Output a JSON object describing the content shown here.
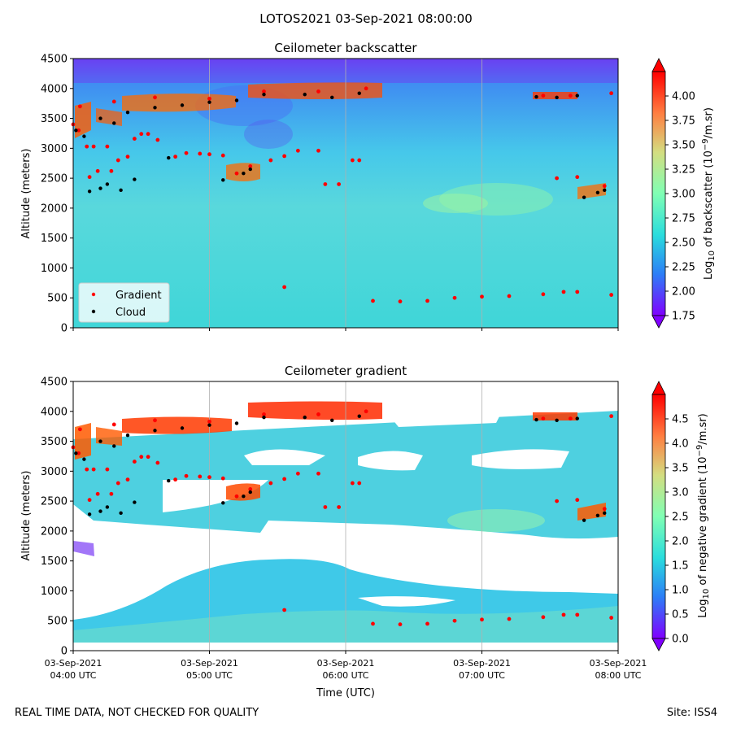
{
  "figure": {
    "suptitle": "LOTOS2021 03-Sep-2021 08:00:00",
    "footer_left": "REAL TIME DATA, NOT CHECKED FOR QUALITY",
    "footer_right": "Site: ISS4"
  },
  "chart_data": [
    {
      "type": "heatmap",
      "title": "Ceilometer backscatter",
      "ylabel": "Altitude (meters)",
      "xlabel": "",
      "ylim": [
        0,
        4500
      ],
      "yticks": [
        0,
        500,
        1000,
        1500,
        2000,
        2500,
        3000,
        3500,
        4000,
        4500
      ],
      "xlim_hours_utc": [
        4,
        8
      ],
      "xticks_hours": [
        4,
        5,
        6,
        7,
        8
      ],
      "xtick_labels": [],
      "grid_vertical": true,
      "colorbar": {
        "label": "Log10 of backscatter (10^-9/m.sr)",
        "range": [
          1.75,
          4.25
        ],
        "ticks": [
          1.75,
          2.0,
          2.25,
          2.5,
          2.75,
          3.0,
          3.25,
          3.5,
          3.75,
          4.0
        ],
        "tick_labels": [
          "1.75",
          "2.00",
          "2.25",
          "2.50",
          "2.75",
          "3.00",
          "3.25",
          "3.50",
          "3.75",
          "4.00"
        ],
        "extend": "both",
        "colormap": "rainbow"
      },
      "legend": {
        "position": "lower-left",
        "entries": [
          {
            "name": "Gradient",
            "color": "#ff0000"
          },
          {
            "name": "Cloud",
            "color": "#000000"
          }
        ]
      },
      "gradient_series": [
        [
          4.0,
          3400
        ],
        [
          4.04,
          3300
        ],
        [
          4.1,
          3030
        ],
        [
          4.15,
          3030
        ],
        [
          4.25,
          3030
        ],
        [
          4.12,
          2520
        ],
        [
          4.18,
          2620
        ],
        [
          4.28,
          2620
        ],
        [
          4.33,
          2800
        ],
        [
          4.4,
          2860
        ],
        [
          4.45,
          3160
        ],
        [
          4.5,
          3240
        ],
        [
          4.55,
          3240
        ],
        [
          4.62,
          3140
        ],
        [
          4.75,
          2860
        ],
        [
          4.83,
          2920
        ],
        [
          4.93,
          2910
        ],
        [
          5.0,
          2900
        ],
        [
          5.1,
          2880
        ],
        [
          5.2,
          2580
        ],
        [
          5.3,
          2700
        ],
        [
          5.45,
          2800
        ],
        [
          5.55,
          2870
        ],
        [
          5.65,
          2960
        ],
        [
          5.8,
          2960
        ],
        [
          5.85,
          2400
        ],
        [
          5.95,
          2400
        ],
        [
          6.05,
          2800
        ],
        [
          6.1,
          2800
        ],
        [
          5.55,
          680
        ],
        [
          6.2,
          450
        ],
        [
          6.4,
          440
        ],
        [
          6.6,
          450
        ],
        [
          6.8,
          500
        ],
        [
          7.0,
          520
        ],
        [
          7.2,
          530
        ],
        [
          7.45,
          560
        ],
        [
          7.6,
          600
        ],
        [
          7.7,
          600
        ],
        [
          7.95,
          550
        ],
        [
          7.55,
          2500
        ],
        [
          7.7,
          2520
        ],
        [
          7.9,
          2370
        ],
        [
          4.05,
          3700
        ],
        [
          4.3,
          3780
        ],
        [
          4.6,
          3850
        ],
        [
          5.0,
          3830
        ],
        [
          5.4,
          3950
        ],
        [
          5.8,
          3950
        ],
        [
          6.15,
          4000
        ],
        [
          7.45,
          3880
        ],
        [
          7.65,
          3880
        ],
        [
          7.95,
          3920
        ]
      ],
      "cloud_series": [
        [
          4.02,
          3300
        ],
        [
          4.08,
          3200
        ],
        [
          4.12,
          2280
        ],
        [
          4.2,
          2330
        ],
        [
          4.25,
          2400
        ],
        [
          4.35,
          2300
        ],
        [
          4.45,
          2480
        ],
        [
          4.7,
          2840
        ],
        [
          5.1,
          2470
        ],
        [
          5.25,
          2580
        ],
        [
          5.3,
          2650
        ],
        [
          4.2,
          3500
        ],
        [
          4.3,
          3420
        ],
        [
          4.4,
          3600
        ],
        [
          4.6,
          3680
        ],
        [
          4.8,
          3720
        ],
        [
          5.0,
          3770
        ],
        [
          5.2,
          3800
        ],
        [
          5.4,
          3900
        ],
        [
          5.7,
          3900
        ],
        [
          5.9,
          3850
        ],
        [
          6.1,
          3920
        ],
        [
          7.4,
          3860
        ],
        [
          7.55,
          3850
        ],
        [
          7.7,
          3880
        ],
        [
          7.75,
          2180
        ],
        [
          7.85,
          2260
        ],
        [
          7.9,
          2300
        ]
      ]
    },
    {
      "type": "heatmap",
      "title": "Ceilometer gradient",
      "ylabel": "Altitude (meters)",
      "xlabel": "Time (UTC)",
      "ylim": [
        0,
        4500
      ],
      "yticks": [
        0,
        500,
        1000,
        1500,
        2000,
        2500,
        3000,
        3500,
        4000,
        4500
      ],
      "xlim_hours_utc": [
        4,
        8
      ],
      "xticks_hours": [
        4,
        5,
        6,
        7,
        8
      ],
      "xtick_labels": [
        [
          "03-Sep-2021",
          "04:00 UTC"
        ],
        [
          "03-Sep-2021",
          "05:00 UTC"
        ],
        [
          "03-Sep-2021",
          "06:00 UTC"
        ],
        [
          "03-Sep-2021",
          "07:00 UTC"
        ],
        [
          "03-Sep-2021",
          "08:00 UTC"
        ]
      ],
      "grid_vertical": true,
      "colorbar": {
        "label": "Log10 of negative gradient (10^-9/m.sr)",
        "range": [
          0.0,
          5.0
        ],
        "ticks": [
          0.0,
          0.5,
          1.0,
          1.5,
          2.0,
          2.5,
          3.0,
          3.5,
          4.0,
          4.5
        ],
        "tick_labels": [
          "0.0",
          "0.5",
          "1.0",
          "1.5",
          "2.0",
          "2.5",
          "3.0",
          "3.5",
          "4.0",
          "4.5"
        ],
        "extend": "both",
        "colormap": "rainbow"
      }
    }
  ]
}
